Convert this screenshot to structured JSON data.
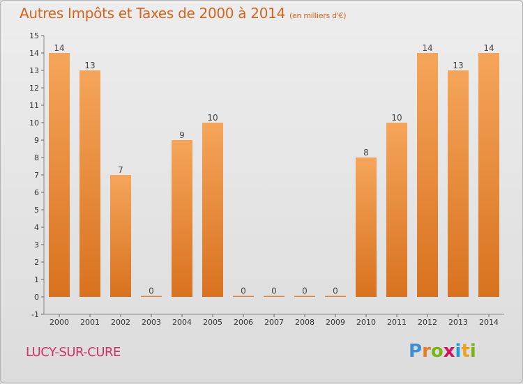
{
  "header": {
    "title": "Autres Impôts et Taxes de 2000 à 2014",
    "unit": "(en milliers d'€)"
  },
  "footer": {
    "town": "LUCY-SUR-CURE",
    "logo_text": "Proxiti"
  },
  "colors": {
    "bar_light": "#f5a55a",
    "bar_dark": "#d8721f",
    "title": "#d2641e",
    "town": "#cc3366"
  },
  "chart_data": {
    "type": "bar",
    "title": "Autres Impôts et Taxes de 2000 à 2014",
    "subtitle": "(en milliers d'€)",
    "xlabel": "",
    "ylabel": "",
    "categories": [
      "2000",
      "2001",
      "2002",
      "2003",
      "2004",
      "2005",
      "2006",
      "2007",
      "2008",
      "2009",
      "2010",
      "2011",
      "2012",
      "2013",
      "2014"
    ],
    "values": [
      14,
      13,
      7,
      0,
      9,
      10,
      0,
      0,
      0,
      0,
      8,
      10,
      14,
      13,
      14
    ],
    "ylim": [
      -1,
      15
    ],
    "yticks": [
      -1,
      0,
      1,
      2,
      3,
      4,
      5,
      6,
      7,
      8,
      9,
      10,
      11,
      12,
      13,
      14,
      15
    ],
    "data_labels": true,
    "grid": false,
    "legend": "none"
  }
}
